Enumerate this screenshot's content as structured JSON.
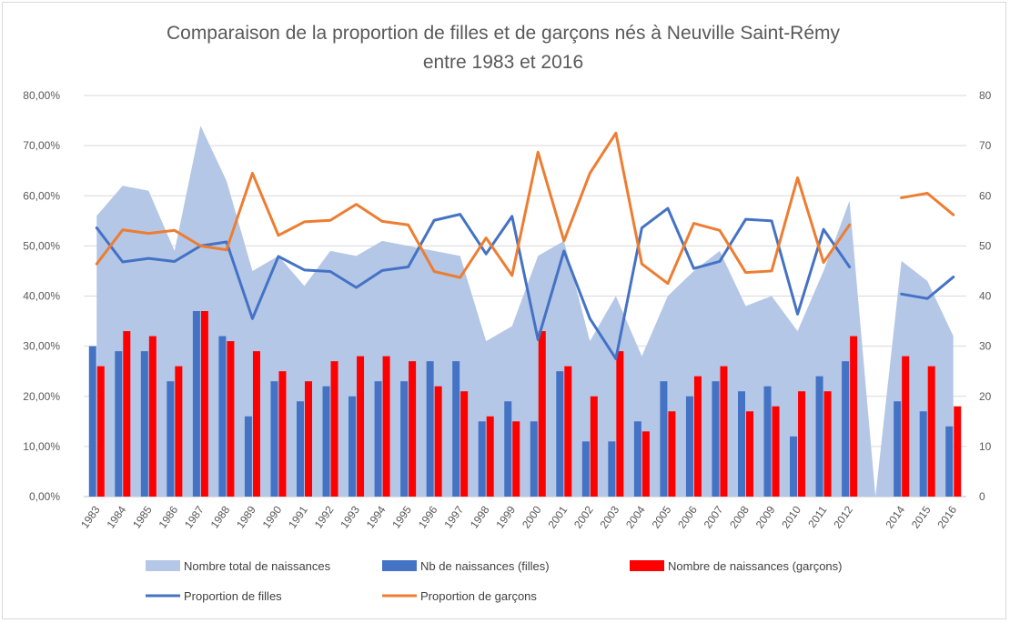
{
  "chart_data": {
    "type": "combo",
    "title_lines": [
      "Comparaison de la proportion de filles et de garçons nés à Neuville Saint-Rémy",
      "entre 1983 et 2016"
    ],
    "categories": [
      "1983",
      "1984",
      "1985",
      "1986",
      "1987",
      "1988",
      "1989",
      "1990",
      "1991",
      "1992",
      "1993",
      "1994",
      "1995",
      "1996",
      "1997",
      "1998",
      "1999",
      "2000",
      "2001",
      "2002",
      "2003",
      "2004",
      "2005",
      "2006",
      "2007",
      "2008",
      "2009",
      "2010",
      "2011",
      "2012",
      "",
      "2014",
      "2015",
      "2016"
    ],
    "left_axis": {
      "min": 0,
      "max": 0.8,
      "step": 0.1,
      "tick_labels": [
        "0,00%",
        "10,00%",
        "20,00%",
        "30,00%",
        "40,00%",
        "50,00%",
        "60,00%",
        "70,00%",
        "80,00%"
      ]
    },
    "right_axis": {
      "min": 0,
      "max": 80,
      "step": 10,
      "tick_labels": [
        "0",
        "10",
        "20",
        "30",
        "40",
        "50",
        "60",
        "70",
        "80"
      ]
    },
    "series": [
      {
        "name": "Nombre total de naissances",
        "kind": "area",
        "axis": "right",
        "color": "#b4c7e7",
        "values": [
          56,
          62,
          61,
          49,
          74,
          63,
          45,
          48,
          42,
          49,
          48,
          51,
          50,
          49,
          48,
          31,
          34,
          48,
          51,
          31,
          40,
          28,
          40,
          45,
          49,
          38,
          40,
          33,
          45,
          59,
          0,
          47,
          43,
          32
        ]
      },
      {
        "name": "Nb de naissances (filles)",
        "kind": "bar",
        "axis": "right",
        "color": "#4472c4",
        "values": [
          30,
          29,
          29,
          23,
          37,
          32,
          16,
          23,
          19,
          22,
          20,
          23,
          23,
          27,
          27,
          15,
          19,
          15,
          25,
          11,
          11,
          15,
          23,
          20,
          23,
          21,
          22,
          12,
          24,
          27,
          null,
          19,
          17,
          14
        ]
      },
      {
        "name": "Nombre de naissances (garçons)",
        "kind": "bar",
        "axis": "right",
        "color": "#ff0000",
        "values": [
          26,
          33,
          32,
          26,
          37,
          31,
          29,
          25,
          23,
          27,
          28,
          28,
          27,
          22,
          21,
          16,
          15,
          33,
          26,
          20,
          29,
          13,
          17,
          24,
          26,
          17,
          18,
          21,
          21,
          32,
          null,
          28,
          26,
          18
        ]
      },
      {
        "name": "Proportion de filles",
        "kind": "line",
        "axis": "left",
        "color": "#4472c4",
        "values": [
          0.536,
          0.468,
          0.475,
          0.469,
          0.5,
          0.508,
          0.355,
          0.479,
          0.452,
          0.449,
          0.417,
          0.451,
          0.458,
          0.551,
          0.563,
          0.484,
          0.559,
          0.313,
          0.49,
          0.355,
          0.275,
          0.536,
          0.575,
          0.455,
          0.469,
          0.553,
          0.55,
          0.364,
          0.533,
          0.458,
          null,
          0.404,
          0.395,
          0.438
        ]
      },
      {
        "name": "Proportion de garçons",
        "kind": "line",
        "axis": "left",
        "color": "#ed7d31",
        "values": [
          0.464,
          0.532,
          0.525,
          0.531,
          0.5,
          0.492,
          0.645,
          0.521,
          0.548,
          0.551,
          0.583,
          0.549,
          0.542,
          0.449,
          0.437,
          0.516,
          0.441,
          0.687,
          0.51,
          0.645,
          0.725,
          0.464,
          0.425,
          0.545,
          0.531,
          0.447,
          0.45,
          0.636,
          0.467,
          0.542,
          null,
          0.596,
          0.605,
          0.562
        ]
      }
    ],
    "legend": [
      {
        "label": "Nombre total de naissances",
        "swatch": "area",
        "color": "#b4c7e7"
      },
      {
        "label": "Nb de naissances (filles)",
        "swatch": "bar",
        "color": "#4472c4"
      },
      {
        "label": "Nombre de naissances (garçons)",
        "swatch": "bar",
        "color": "#ff0000"
      },
      {
        "label": "Proportion de filles",
        "swatch": "line",
        "color": "#4472c4"
      },
      {
        "label": "Proportion de garçons",
        "swatch": "line",
        "color": "#ed7d31"
      }
    ],
    "gridlines": true,
    "legend_position": "bottom"
  }
}
